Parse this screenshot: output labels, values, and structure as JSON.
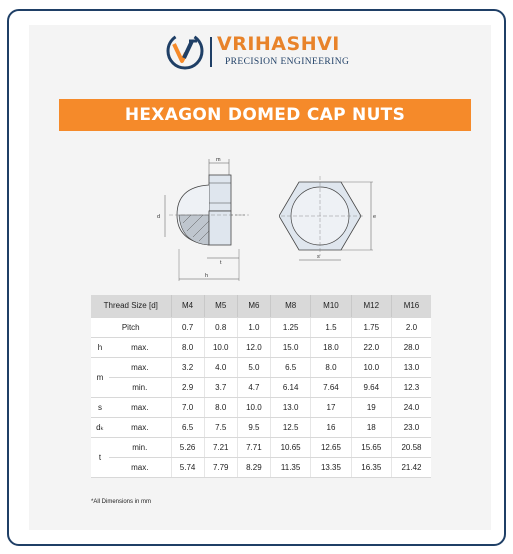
{
  "brand": {
    "name": "VRIHASHVI",
    "tagline": "PRECISION ENGINEERING",
    "colors": {
      "orange": "#f58a2a",
      "navy": "#1f3f66"
    }
  },
  "title": "HEXAGON DOMED CAP NUTS",
  "drawing_labels": {
    "m": "m",
    "d": "d",
    "t": "t",
    "h": "h",
    "e": "e",
    "s": "s"
  },
  "table": {
    "header_label": "Thread Size [d]",
    "sizes": [
      "M4",
      "M5",
      "M6",
      "M8",
      "M10",
      "M12",
      "M16"
    ],
    "rows": [
      {
        "symbol": "",
        "label": "Pitch",
        "values": [
          "0.7",
          "0.8",
          "1.0",
          "1.25",
          "1.5",
          "1.75",
          "2.0"
        ]
      },
      {
        "symbol": "h",
        "label": "max.",
        "values": [
          "8.0",
          "10.0",
          "12.0",
          "15.0",
          "18.0",
          "22.0",
          "28.0"
        ]
      },
      {
        "symbol": "m",
        "label": "max.",
        "values": [
          "3.2",
          "4.0",
          "5.0",
          "6.5",
          "8.0",
          "10.0",
          "13.0"
        ]
      },
      {
        "symbol": "",
        "label": "min.",
        "values": [
          "2.9",
          "3.7",
          "4.7",
          "6.14",
          "7.64",
          "9.64",
          "12.3"
        ]
      },
      {
        "symbol": "s",
        "label": "max.",
        "values": [
          "7.0",
          "8.0",
          "10.0",
          "13.0",
          "17",
          "19",
          "24.0"
        ]
      },
      {
        "symbol": "dₖ",
        "label": "max.",
        "values": [
          "6.5",
          "7.5",
          "9.5",
          "12.5",
          "16",
          "18",
          "23.0"
        ]
      },
      {
        "symbol": "t",
        "label": "min.",
        "values": [
          "5.26",
          "7.21",
          "7.71",
          "10.65",
          "12.65",
          "15.65",
          "20.58"
        ]
      },
      {
        "symbol": "",
        "label": "max.",
        "values": [
          "5.74",
          "7.79",
          "8.29",
          "11.35",
          "13.35",
          "16.35",
          "21.42"
        ]
      }
    ]
  },
  "footnote": "*All Dimensions in mm"
}
